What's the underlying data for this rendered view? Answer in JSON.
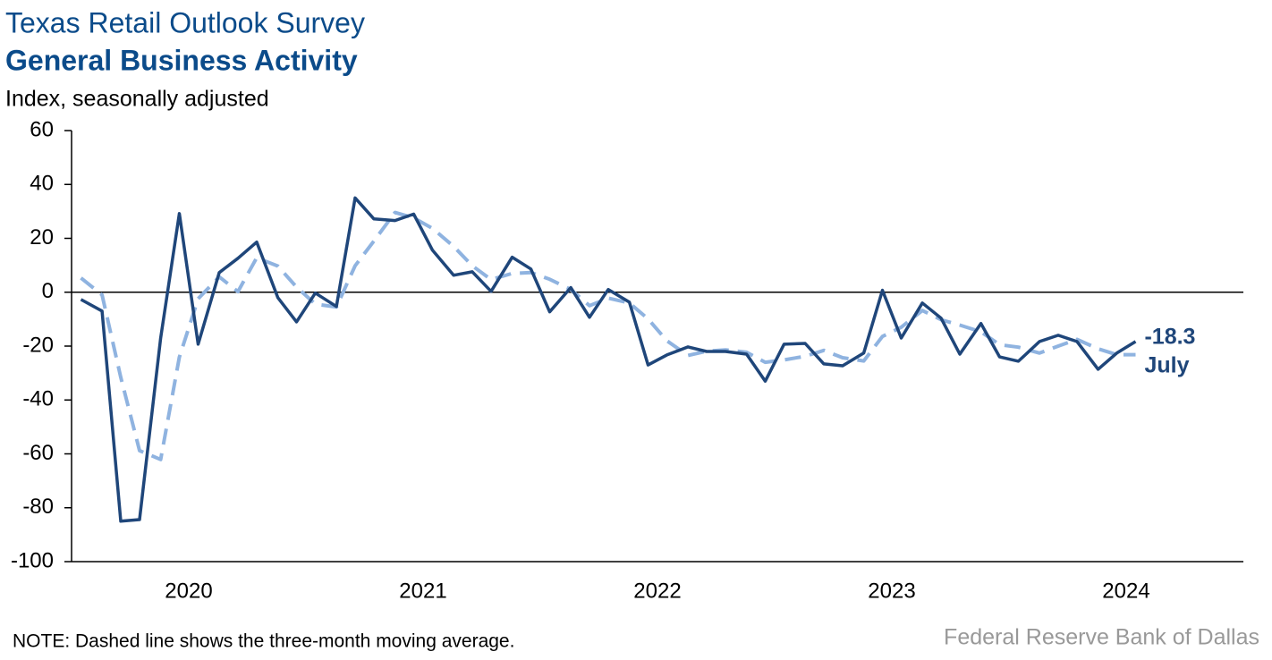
{
  "chart_data": {
    "type": "line",
    "title": "Texas Retail Outlook Survey",
    "subtitle": "General Business Activity",
    "y_label": "Index, seasonally adjusted",
    "note": "NOTE: Dashed line shows the three-month moving average.",
    "source": "Federal Reserve Bank of Dallas",
    "annotation": "July",
    "x": [
      2020.04,
      2020.13,
      2020.21,
      2020.29,
      2020.38,
      2020.46,
      2020.54,
      2020.63,
      2020.71,
      2020.79,
      2020.88,
      2020.96,
      2021.04,
      2021.13,
      2021.21,
      2021.29,
      2021.38,
      2021.46,
      2021.54,
      2021.63,
      2021.71,
      2021.79,
      2021.88,
      2021.96,
      2022.04,
      2022.13,
      2022.21,
      2022.29,
      2022.38,
      2022.46,
      2022.54,
      2022.63,
      2022.71,
      2022.79,
      2022.88,
      2022.96,
      2023.04,
      2023.13,
      2023.21,
      2023.29,
      2023.38,
      2023.46,
      2023.54,
      2023.63,
      2023.71,
      2023.79,
      2023.88,
      2023.96,
      2024.04,
      2024.13,
      2024.21,
      2024.29,
      2024.38,
      2024.46,
      2024.54
    ],
    "series": [
      {
        "name": "General Business Activity",
        "color": "#1f467a",
        "dashed": false,
        "values": [
          -2.7,
          -7,
          -85,
          -84.4,
          -17,
          29.2,
          -19.3,
          7.3,
          12.6,
          18.6,
          -2,
          -11,
          -0.3,
          -5.3,
          35,
          27.2,
          26.6,
          29,
          15.6,
          6.3,
          7.6,
          0.3,
          13,
          8.6,
          -7.3,
          1.7,
          -9.3,
          1,
          -3.7,
          -27,
          -23.3,
          -20.3,
          -22,
          -22,
          -23,
          -33,
          -19.3,
          -19,
          -26.6,
          -27.3,
          -22.6,
          0.7,
          -17,
          -4,
          -9.6,
          -23,
          -11.6,
          -24,
          -25.6,
          -18.3,
          -16,
          -18.3,
          -28.6,
          -22.6,
          -18.3
        ]
      },
      {
        "name": "Three-month moving average",
        "color": "#8fb3e0",
        "dashed": true,
        "values": [
          5.3,
          -1,
          -31.6,
          -58.8,
          -62.1,
          -24.1,
          -2.4,
          5.7,
          0.2,
          12.8,
          9.7,
          1.9,
          -4.4,
          -5.5,
          9.8,
          19,
          29.6,
          27.6,
          23.7,
          17,
          9.8,
          4.7,
          7,
          7.3,
          4.8,
          1,
          -5,
          -2.2,
          -4,
          -9.9,
          -18,
          -23.5,
          -21.9,
          -21.4,
          -22.3,
          -26,
          -25.1,
          -23.8,
          -21.6,
          -24.3,
          -25.5,
          -16.4,
          -13,
          -6.8,
          -10.2,
          -12.2,
          -14.7,
          -19.5,
          -20.4,
          -22.6,
          -20,
          -17.5,
          -21,
          -23.2,
          -23.2
        ]
      }
    ],
    "xlim": [
      2020,
      2025
    ],
    "xticks": [
      {
        "value": 2020.5,
        "label": "2020"
      },
      {
        "value": 2021.5,
        "label": "2021"
      },
      {
        "value": 2022.5,
        "label": "2022"
      },
      {
        "value": 2023.5,
        "label": "2023"
      },
      {
        "value": 2024.5,
        "label": "2024"
      }
    ],
    "ylim": [
      -100,
      60
    ],
    "yticks": [
      -100,
      -80,
      -60,
      -40,
      -20,
      0,
      20,
      40,
      60
    ]
  }
}
